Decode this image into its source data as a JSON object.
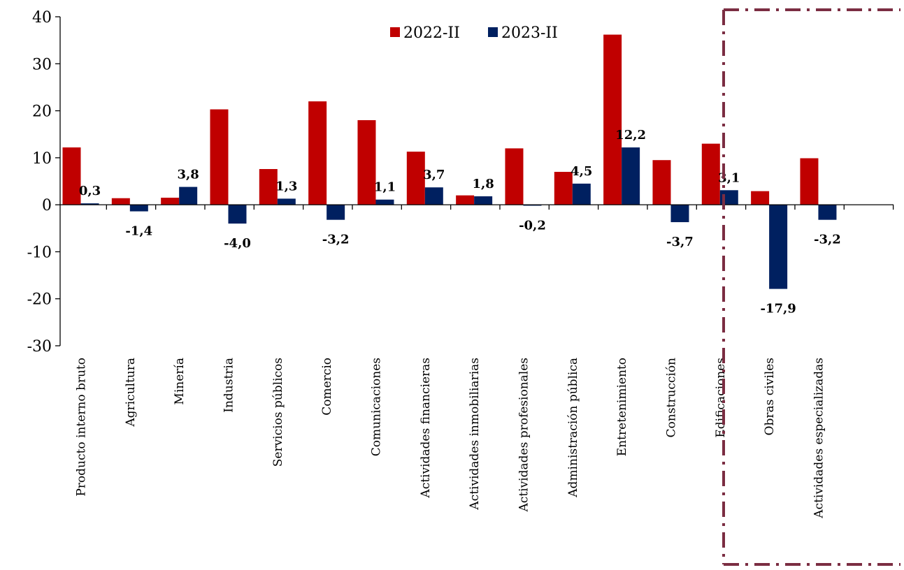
{
  "chart_data": {
    "type": "bar",
    "categories": [
      "Producto interno bruto",
      "Agricultura",
      "Minería",
      "Industria",
      "Servicios públicos",
      "Comercio",
      "Comunicaciones",
      "Actividades financieras",
      "Actividades inmobiliarias",
      "Actividades profesionales",
      "Administración pública",
      "Entretenimiento",
      "Construcción",
      "Edificaciones",
      "Obras civiles",
      "Actividades especializadas"
    ],
    "series": [
      {
        "name": "2022-II",
        "color": "#c00000",
        "values": [
          12.2,
          1.4,
          1.5,
          20.3,
          7.6,
          22.0,
          18.0,
          11.3,
          2.0,
          12.0,
          7.0,
          36.2,
          9.5,
          13.0,
          2.9,
          9.9
        ]
      },
      {
        "name": "2023-II",
        "color": "#002060",
        "values": [
          0.3,
          -1.4,
          3.8,
          -4.0,
          1.3,
          -3.2,
          1.1,
          3.7,
          1.8,
          -0.2,
          4.5,
          12.2,
          -3.7,
          3.1,
          -17.9,
          -3.2
        ],
        "labels": [
          "0,3",
          "-1,4",
          "3,8",
          "-4,0",
          "1,3",
          "-3,2",
          "1,1",
          "3,7",
          "1,8",
          "-0,2",
          "4,5",
          "12,2",
          "-3,7",
          "3,1",
          "-17,9",
          "-3,2"
        ]
      }
    ],
    "yticks": [
      "40",
      "30",
      "20",
      "10",
      "0",
      "-10",
      "-20",
      "-30"
    ],
    "ylim": [
      -30,
      40
    ],
    "legend": "top-center",
    "grid": false,
    "highlight_box_color": "#7b2d42"
  }
}
